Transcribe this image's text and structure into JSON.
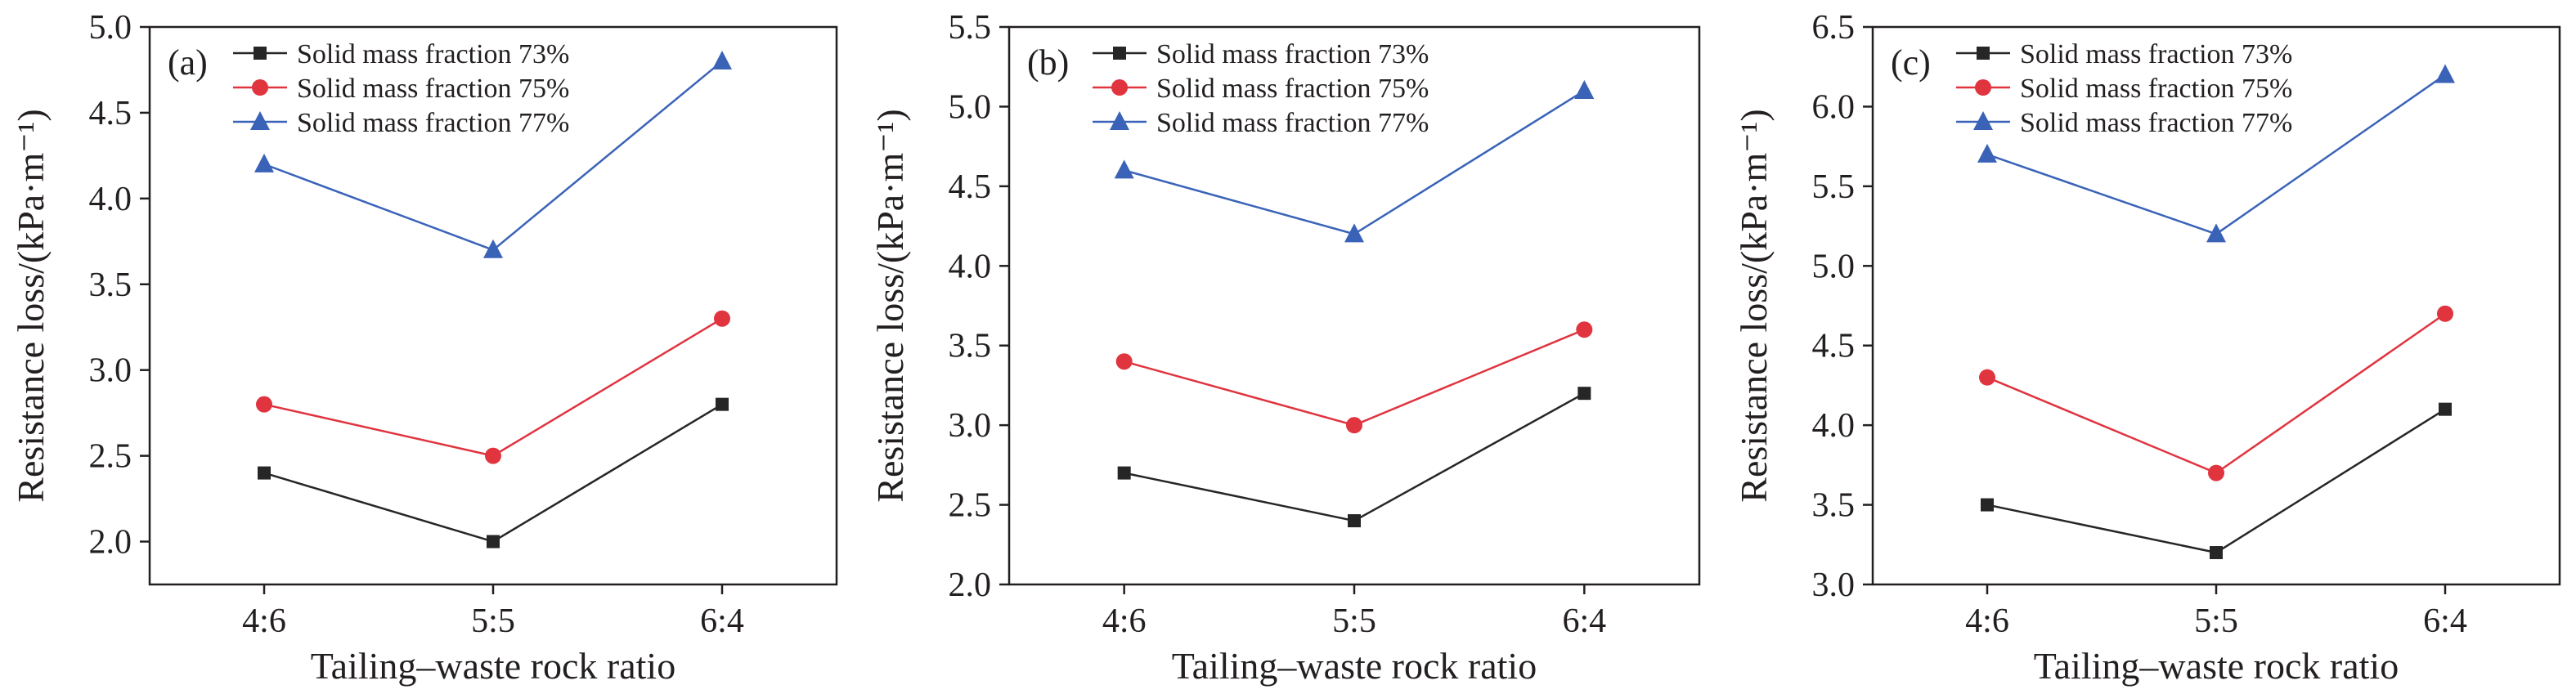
{
  "chart_data": [
    {
      "type": "line",
      "panel_label": "(a)",
      "xlabel": "Tailing–waste rock ratio",
      "ylabel": "Resistance loss/(kPa·m⁻¹)",
      "categories": [
        "4:6",
        "5:5",
        "6:4"
      ],
      "ylim": [
        1.75,
        5.0
      ],
      "yticks": [
        "2.0",
        "2.5",
        "3.0",
        "3.5",
        "4.0",
        "4.5",
        "5.0"
      ],
      "series": [
        {
          "name": "Solid mass fraction 73%",
          "values": [
            2.4,
            2.0,
            2.8
          ],
          "color": "#262626",
          "marker": "square"
        },
        {
          "name": "Solid mass fraction 75%",
          "values": [
            2.8,
            2.5,
            3.3
          ],
          "color": "#e0343f",
          "marker": "circle"
        },
        {
          "name": "Solid mass fraction 77%",
          "values": [
            4.2,
            3.7,
            4.8
          ],
          "color": "#3a63b8",
          "marker": "triangle"
        }
      ],
      "legend_position": "top-left",
      "grid": false
    },
    {
      "type": "line",
      "panel_label": "(b)",
      "xlabel": "Tailing–waste rock ratio",
      "ylabel": "Resistance loss/(kPa·m⁻¹)",
      "categories": [
        "4:6",
        "5:5",
        "6:4"
      ],
      "ylim": [
        2.0,
        5.5
      ],
      "yticks": [
        "2.0",
        "2.5",
        "3.0",
        "3.5",
        "4.0",
        "4.5",
        "5.0",
        "5.5"
      ],
      "series": [
        {
          "name": "Solid mass fraction 73%",
          "values": [
            2.7,
            2.4,
            3.2
          ],
          "color": "#262626",
          "marker": "square"
        },
        {
          "name": "Solid mass fraction 75%",
          "values": [
            3.4,
            3.0,
            3.6
          ],
          "color": "#e0343f",
          "marker": "circle"
        },
        {
          "name": "Solid mass fraction 77%",
          "values": [
            4.6,
            4.2,
            5.1
          ],
          "color": "#3a63b8",
          "marker": "triangle"
        }
      ],
      "legend_position": "top-left",
      "grid": false
    },
    {
      "type": "line",
      "panel_label": "(c)",
      "xlabel": "Tailing–waste rock ratio",
      "ylabel": "Resistance loss/(kPa·m⁻¹)",
      "categories": [
        "4:6",
        "5:5",
        "6:4"
      ],
      "ylim": [
        3.0,
        6.5
      ],
      "yticks": [
        "3.0",
        "3.5",
        "4.0",
        "4.5",
        "5.0",
        "5.5",
        "6.0",
        "6.5"
      ],
      "series": [
        {
          "name": "Solid mass fraction 73%",
          "values": [
            3.5,
            3.2,
            4.1
          ],
          "color": "#262626",
          "marker": "square"
        },
        {
          "name": "Solid mass fraction 75%",
          "values": [
            4.3,
            3.7,
            4.7
          ],
          "color": "#e0343f",
          "marker": "circle"
        },
        {
          "name": "Solid mass fraction 77%",
          "values": [
            5.7,
            5.2,
            6.2
          ],
          "color": "#3a63b8",
          "marker": "triangle"
        }
      ],
      "legend_position": "top-left",
      "grid": false
    }
  ]
}
